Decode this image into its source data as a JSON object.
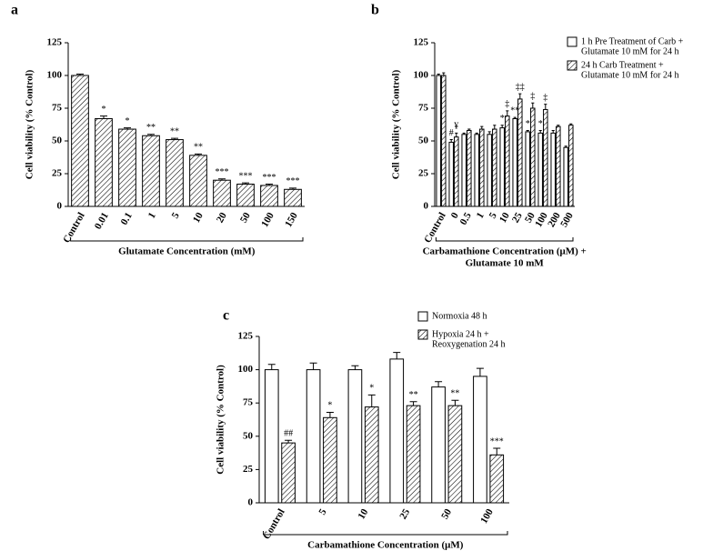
{
  "chart_data": [
    {
      "type": "bar",
      "panel": "a",
      "ylabel": "Cell viability (% Control)",
      "xlabel": [
        "Glutamate Concentration (mM)"
      ],
      "categories": [
        "Control",
        "0.01",
        "0.1",
        "1",
        "5",
        "10",
        "20",
        "50",
        "100",
        "150"
      ],
      "values": [
        100,
        67,
        59,
        54,
        51,
        39,
        20,
        17,
        16,
        13
      ],
      "errors": [
        1,
        2,
        1,
        1,
        1,
        1,
        1,
        1,
        1,
        1
      ],
      "annotations": [
        null,
        "*",
        "*",
        "**",
        "**",
        "**",
        "***",
        "***",
        "***",
        "***"
      ],
      "color": "#ffffff",
      "pattern": "hatch",
      "ylim": [
        0,
        125
      ],
      "yticks": [
        0,
        25,
        50,
        75,
        100,
        125
      ]
    },
    {
      "type": "bar",
      "panel": "b",
      "ylabel": "Cell viability (% Control)",
      "xlabel": [
        "Carbamathione Concentration (μM) +",
        "Glutamate 10 mM"
      ],
      "categories": [
        "Control",
        "0",
        "0.5",
        "1",
        "5",
        "10",
        "25",
        "50",
        "100",
        "200",
        "500"
      ],
      "series": [
        {
          "name": [
            "1 h Pre Treatment of Carb +",
            "Glutamate 10 mM for 24 h"
          ],
          "color": "#ffffff",
          "pattern": "none",
          "values": [
            100,
            49,
            55,
            55,
            55,
            60,
            67,
            57,
            56,
            56,
            45
          ],
          "errors": [
            1,
            2,
            1,
            1,
            2,
            2,
            1,
            1,
            2,
            2,
            1
          ],
          "annotations": [
            null,
            "#",
            null,
            null,
            null,
            "*",
            "**",
            "*",
            "*",
            null,
            null
          ]
        },
        {
          "name": [
            "24 h Carb Treatment +",
            "Glutamate 10 mM for 24 h"
          ],
          "color": "#ffffff",
          "pattern": "hatch",
          "values": [
            100,
            53,
            58,
            59,
            59,
            69,
            82,
            75,
            74,
            61,
            62
          ],
          "errors": [
            2,
            3,
            1,
            2,
            3,
            4,
            4,
            4,
            4,
            1,
            1
          ],
          "annotations": [
            null,
            "¥",
            null,
            null,
            null,
            "‡",
            "‡‡",
            "‡",
            "‡",
            null,
            null
          ]
        }
      ],
      "ylim": [
        0,
        125
      ],
      "yticks": [
        0,
        25,
        50,
        75,
        100,
        125
      ]
    },
    {
      "type": "bar",
      "panel": "c",
      "ylabel": "Cell viability (% Control)",
      "xlabel": [
        "Carbamathione Concentration (μM)"
      ],
      "categories": [
        "Control",
        "5",
        "10",
        "25",
        "50",
        "100"
      ],
      "series": [
        {
          "name": [
            "Normoxia 48 h"
          ],
          "color": "#ffffff",
          "pattern": "none",
          "values": [
            100,
            100,
            100,
            108,
            87,
            95
          ],
          "errors": [
            4,
            5,
            3,
            5,
            4,
            6
          ],
          "annotations": [
            null,
            null,
            null,
            null,
            null,
            null
          ]
        },
        {
          "name": [
            "Hypoxia 24 h +",
            " Reoxygenation 24 h"
          ],
          "color": "#ffffff",
          "pattern": "hatch",
          "values": [
            45,
            64,
            72,
            73,
            73,
            36
          ],
          "errors": [
            2,
            4,
            9,
            3,
            4,
            5
          ],
          "annotations": [
            "##",
            "*",
            "*",
            "**",
            "**",
            "***"
          ]
        }
      ],
      "ylim": [
        0,
        125
      ],
      "yticks": [
        0,
        25,
        50,
        75,
        100,
        125
      ]
    }
  ]
}
